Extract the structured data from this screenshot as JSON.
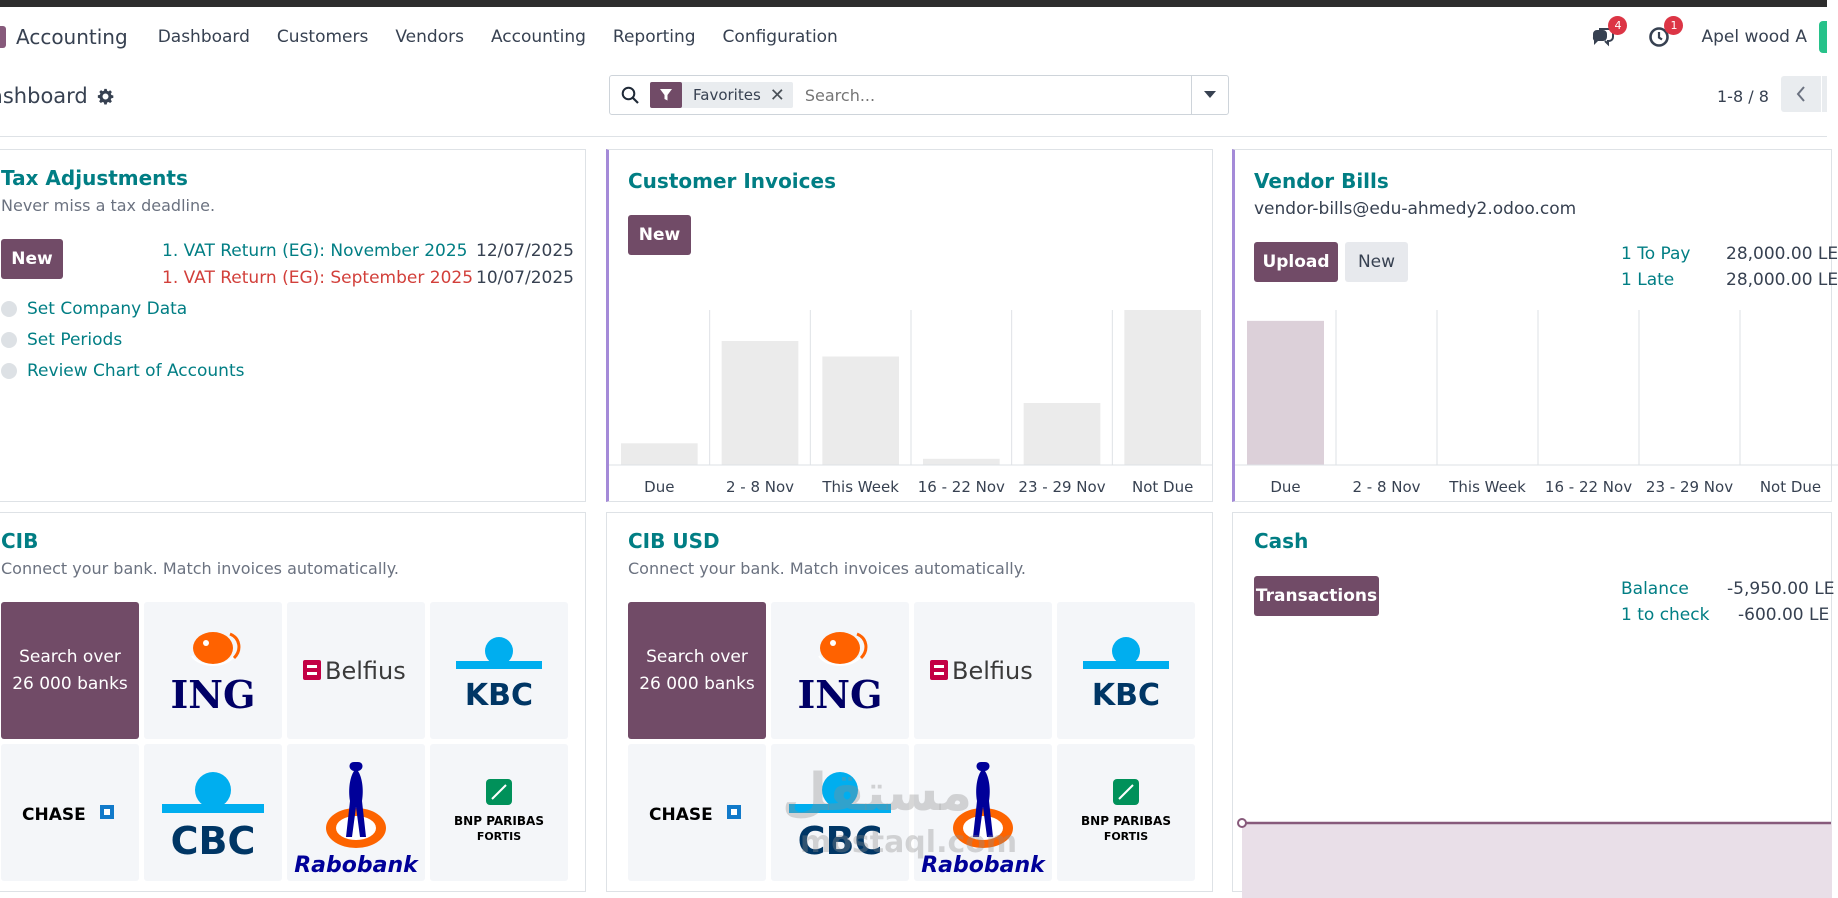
{
  "navbar": {
    "app_name": "Accounting",
    "menu": [
      "Dashboard",
      "Customers",
      "Vendors",
      "Accounting",
      "Reporting",
      "Configuration"
    ],
    "messages_badge": "4",
    "activities_badge": "1",
    "user_name": "Apel wood A"
  },
  "control_panel": {
    "title": "ashboard",
    "search": {
      "facet_label": "Favorites",
      "placeholder": "Search..."
    },
    "pager": "1-8 / 8"
  },
  "tax_card": {
    "title": "Tax Adjustments",
    "subtitle": "Never miss a tax deadline.",
    "new_label": "New",
    "returns": [
      {
        "label": "1. VAT Return (EG): November 2025",
        "date": "12/07/2025",
        "status": "ok"
      },
      {
        "label": "1. VAT Return (EG): September 2025",
        "date": "10/07/2025",
        "status": "late"
      }
    ],
    "tasks": [
      "Set Company Data",
      "Set Periods",
      "Review Chart of Accounts"
    ]
  },
  "customer_invoices": {
    "title": "Customer Invoices",
    "new_label": "New",
    "chart_data": {
      "type": "bar",
      "categories": [
        "Due",
        "2 - 8 Nov",
        "This Week",
        "16 - 22 Nov",
        "23 - 29 Nov",
        "Not Due"
      ],
      "values": [
        0.14,
        0.8,
        0.7,
        0.04,
        0.4,
        1.0
      ],
      "ylim": [
        0,
        1
      ],
      "bar_color": "#ebebeb"
    }
  },
  "vendor_bills": {
    "title": "Vendor Bills",
    "email": "vendor-bills@edu-ahmedy2.odoo.com",
    "upload_label": "Upload",
    "new_label": "New",
    "stats": [
      {
        "label": "1 To Pay",
        "value": "28,000.00 LE"
      },
      {
        "label": "1 Late",
        "value": "28,000.00 LE"
      }
    ],
    "chart_data": {
      "type": "bar",
      "categories": [
        "Due",
        "2 - 8 Nov",
        "This Week",
        "16 - 22 Nov",
        "23 - 29 Nov",
        "Not Due"
      ],
      "values": [
        0.93,
        0,
        0,
        0,
        0,
        0
      ],
      "ylim": [
        0,
        1
      ],
      "bar_color": "#dcd0d9"
    }
  },
  "cib": {
    "title": "CIB",
    "subtitle": "Connect your bank. Match invoices automatically.",
    "search_banks": [
      "Search over",
      "26 000 banks"
    ],
    "banks": [
      "ING",
      "Belfius",
      "KBC",
      "CHASE",
      "CBC",
      "Rabobank",
      "BNP PARIBAS",
      "FORTIS"
    ]
  },
  "cib_usd": {
    "title": "CIB USD",
    "subtitle": "Connect your bank. Match invoices automatically.",
    "search_banks": [
      "Search over",
      "26 000 banks"
    ],
    "banks": [
      "ING",
      "Belfius",
      "KBC",
      "CHASE",
      "CBC",
      "Rabobank",
      "BNP PARIBAS",
      "FORTIS"
    ]
  },
  "cash": {
    "title": "Cash",
    "transactions_label": "Transactions",
    "stats": [
      {
        "label": "Balance",
        "value": "-5,950.00 LE"
      },
      {
        "label": "1 to check",
        "value": "-600.00 LE"
      }
    ],
    "chart_data": {
      "type": "area",
      "values": [
        -5950,
        -5950
      ],
      "fill": "#e9dfe8",
      "line": "#875a7b"
    }
  },
  "watermark": {
    "arabic": "مستقل",
    "latin": "mostaql.com"
  }
}
